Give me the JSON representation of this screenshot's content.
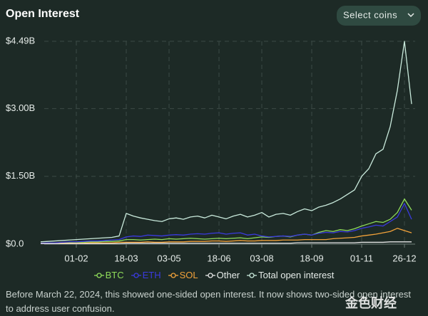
{
  "title": "Open Interest",
  "button": "Select coins",
  "chart_data": {
    "type": "line",
    "categories": [
      null,
      null,
      null,
      null,
      null,
      "01-02",
      null,
      null,
      null,
      null,
      null,
      null,
      "18-03",
      null,
      null,
      null,
      null,
      null,
      "03-05",
      null,
      null,
      null,
      null,
      null,
      null,
      "18-06",
      null,
      null,
      null,
      null,
      null,
      "03-08",
      null,
      null,
      null,
      null,
      null,
      null,
      "18-09",
      null,
      null,
      null,
      null,
      null,
      null,
      "01-11",
      null,
      null,
      null,
      null,
      null,
      "26-12",
      null
    ],
    "ylim": [
      0,
      4.49
    ],
    "yticks": [
      {
        "value": 0,
        "label": "$0.0"
      },
      {
        "value": 1.5,
        "label": "$1.50B"
      },
      {
        "value": 3.0,
        "label": "$3.00B"
      },
      {
        "value": 4.49,
        "label": "$4.49B"
      }
    ],
    "grid": true,
    "series": [
      {
        "name": "BTC",
        "color": "#8fdc5a",
        "values": [
          0.02,
          0.02,
          0.03,
          0.03,
          0.03,
          0.04,
          0.04,
          0.05,
          0.05,
          0.06,
          0.06,
          0.07,
          0.1,
          0.1,
          0.09,
          0.1,
          0.11,
          0.1,
          0.12,
          0.11,
          0.12,
          0.13,
          0.12,
          0.11,
          0.12,
          0.13,
          0.12,
          0.13,
          0.14,
          0.12,
          0.14,
          0.16,
          0.15,
          0.17,
          0.18,
          0.16,
          0.2,
          0.22,
          0.2,
          0.26,
          0.3,
          0.28,
          0.32,
          0.3,
          0.34,
          0.4,
          0.45,
          0.5,
          0.48,
          0.55,
          0.7,
          1.0,
          0.75
        ]
      },
      {
        "name": "ETH",
        "color": "#3a3adf",
        "values": [
          0.02,
          0.03,
          0.03,
          0.04,
          0.05,
          0.05,
          0.06,
          0.07,
          0.07,
          0.08,
          0.09,
          0.1,
          0.16,
          0.18,
          0.17,
          0.2,
          0.19,
          0.18,
          0.2,
          0.21,
          0.2,
          0.22,
          0.23,
          0.22,
          0.24,
          0.25,
          0.22,
          0.24,
          0.25,
          0.2,
          0.22,
          0.18,
          0.16,
          0.17,
          0.18,
          0.17,
          0.2,
          0.22,
          0.2,
          0.24,
          0.26,
          0.25,
          0.28,
          0.27,
          0.3,
          0.35,
          0.38,
          0.42,
          0.4,
          0.5,
          0.6,
          0.9,
          0.55
        ]
      },
      {
        "name": "SOL",
        "color": "#f2a23a",
        "values": [
          0.01,
          0.01,
          0.01,
          0.02,
          0.02,
          0.02,
          0.02,
          0.03,
          0.03,
          0.03,
          0.03,
          0.04,
          0.04,
          0.04,
          0.04,
          0.05,
          0.04,
          0.04,
          0.05,
          0.05,
          0.05,
          0.06,
          0.06,
          0.06,
          0.07,
          0.07,
          0.06,
          0.07,
          0.08,
          0.07,
          0.07,
          0.08,
          0.08,
          0.08,
          0.09,
          0.09,
          0.09,
          0.1,
          0.1,
          0.1,
          0.1,
          0.12,
          0.13,
          0.14,
          0.15,
          0.18,
          0.2,
          0.22,
          0.25,
          0.28,
          0.35,
          0.3,
          0.25
        ]
      },
      {
        "name": "Other",
        "color": "#e8e8e8",
        "values": [
          0.01,
          0.01,
          0.01,
          0.01,
          0.01,
          0.01,
          0.01,
          0.01,
          0.01,
          0.01,
          0.01,
          0.01,
          0.02,
          0.02,
          0.02,
          0.02,
          0.02,
          0.02,
          0.02,
          0.02,
          0.02,
          0.02,
          0.02,
          0.02,
          0.02,
          0.02,
          0.02,
          0.02,
          0.02,
          0.02,
          0.02,
          0.02,
          0.02,
          0.02,
          0.02,
          0.02,
          0.03,
          0.03,
          0.03,
          0.03,
          0.03,
          0.03,
          0.03,
          0.03,
          0.03,
          0.04,
          0.04,
          0.04,
          0.04,
          0.05,
          0.05,
          0.05,
          0.05
        ]
      },
      {
        "name": "Total open interest",
        "color": "#c9eadc",
        "values": [
          0.05,
          0.06,
          0.07,
          0.08,
          0.09,
          0.1,
          0.11,
          0.12,
          0.13,
          0.14,
          0.15,
          0.18,
          0.68,
          0.62,
          0.58,
          0.55,
          0.52,
          0.5,
          0.56,
          0.58,
          0.55,
          0.6,
          0.62,
          0.58,
          0.64,
          0.6,
          0.56,
          0.62,
          0.66,
          0.6,
          0.64,
          0.7,
          0.6,
          0.66,
          0.68,
          0.64,
          0.72,
          0.78,
          0.74,
          0.82,
          0.86,
          0.92,
          1.0,
          1.1,
          1.2,
          1.5,
          1.67,
          2.0,
          2.1,
          2.6,
          3.4,
          4.49,
          3.1
        ]
      }
    ]
  },
  "footnote": "Before March 22, 2024, this showed one-sided open interest. It now shows two-sided open interest to address user confusion.",
  "watermark": "金色财经"
}
